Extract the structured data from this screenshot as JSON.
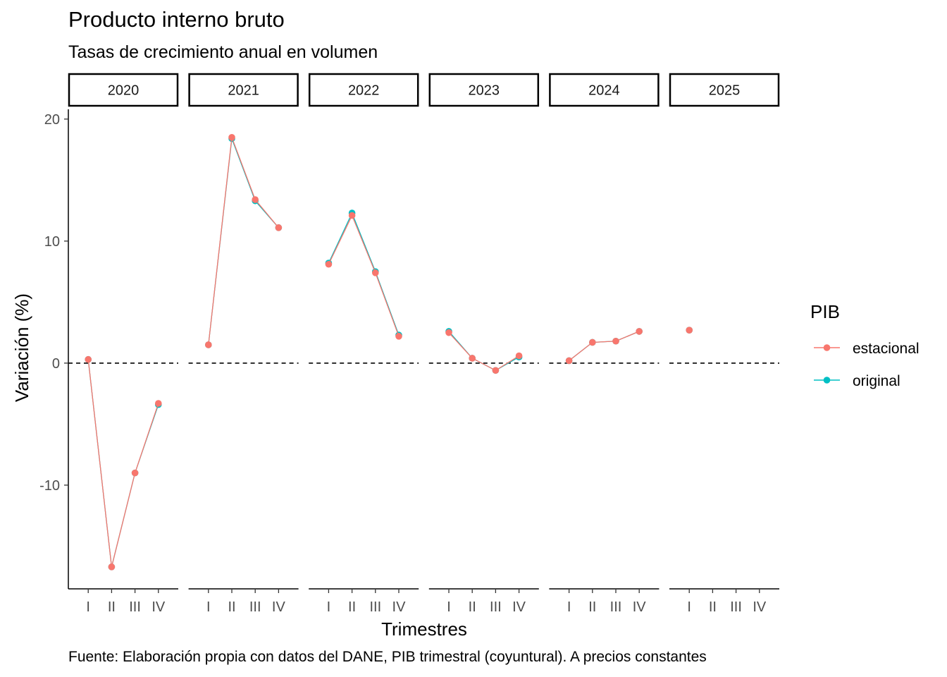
{
  "title": "Producto interno bruto",
  "subtitle": "Tasas de crecimiento anual en volumen",
  "caption": "Fuente: Elaboración propia con datos del DANE, PIB trimestral (coyuntural). A precios constantes",
  "chart_data": {
    "type": "line",
    "facet_by": "year",
    "facets": [
      "2020",
      "2021",
      "2022",
      "2023",
      "2024",
      "2025"
    ],
    "categories": [
      "I",
      "II",
      "III",
      "IV"
    ],
    "xlabel": "Trimestres",
    "ylabel": "Variación (%)",
    "ylim": [
      -18.5,
      20.8
    ],
    "yticks": [
      -10,
      0,
      10,
      20
    ],
    "reference_line": 0,
    "grid": false,
    "legend": {
      "title": "PIB",
      "position": "right"
    },
    "series": [
      {
        "name": "estacional",
        "color": "#F8766D",
        "values": [
          [
            0.3,
            -16.7,
            -9.0,
            -3.3
          ],
          [
            1.5,
            18.5,
            13.4,
            11.1
          ],
          [
            8.1,
            12.1,
            7.4,
            2.2
          ],
          [
            2.5,
            0.4,
            -0.6,
            0.6
          ],
          [
            0.2,
            1.7,
            1.8,
            2.6
          ],
          [
            2.7,
            null,
            null,
            null
          ]
        ]
      },
      {
        "name": "original",
        "color": "#00BFC4",
        "values": [
          [
            0.3,
            -16.7,
            -9.0,
            -3.4
          ],
          [
            1.5,
            18.4,
            13.3,
            11.1
          ],
          [
            8.2,
            12.3,
            7.5,
            2.3
          ],
          [
            2.6,
            0.4,
            -0.6,
            0.5
          ],
          [
            0.2,
            1.7,
            1.8,
            2.6
          ],
          [
            2.7,
            null,
            null,
            null
          ]
        ]
      }
    ]
  }
}
